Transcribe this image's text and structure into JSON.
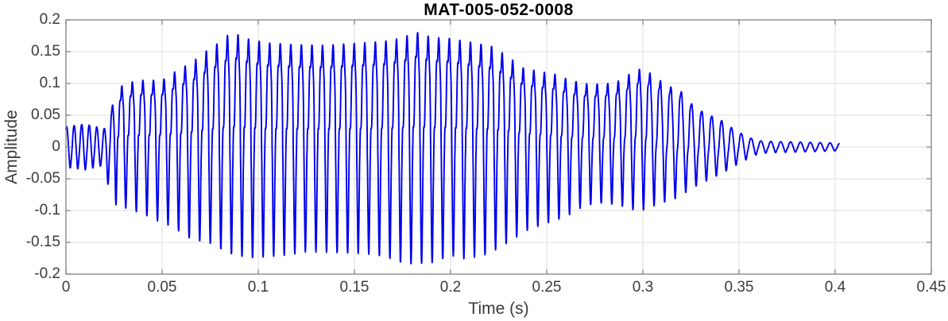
{
  "chart_data": {
    "type": "line",
    "subtype": "audio-waveform",
    "title": "MAT-005-052-0008",
    "xlabel": "Time (s)",
    "ylabel": "Amplitude",
    "xlim": [
      0,
      0.45
    ],
    "ylim": [
      -0.2,
      0.2
    ],
    "grid": true,
    "legend": "none",
    "xticks": [
      {
        "value": 0,
        "label": "0"
      },
      {
        "value": 0.05,
        "label": "0.05"
      },
      {
        "value": 0.1,
        "label": "0.1"
      },
      {
        "value": 0.15,
        "label": "0.15"
      },
      {
        "value": 0.2,
        "label": "0.2"
      },
      {
        "value": 0.25,
        "label": "0.25"
      },
      {
        "value": 0.3,
        "label": "0.3"
      },
      {
        "value": 0.35,
        "label": "0.35"
      },
      {
        "value": 0.4,
        "label": "0.4"
      },
      {
        "value": 0.45,
        "label": "0.45"
      }
    ],
    "yticks": [
      {
        "value": 0.2,
        "label": "0.2"
      },
      {
        "value": 0.15,
        "label": "0.15"
      },
      {
        "value": 0.1,
        "label": "0.1"
      },
      {
        "value": 0.05,
        "label": "0.05"
      },
      {
        "value": 0,
        "label": "0"
      },
      {
        "value": -0.05,
        "label": "-0.05"
      },
      {
        "value": -0.1,
        "label": "-0.1"
      },
      {
        "value": -0.15,
        "label": "-0.15"
      },
      {
        "value": -0.2,
        "label": "-0.2"
      }
    ],
    "colors": {
      "line": "#0000EE",
      "grid": "#DCDCDC",
      "box": "#8A8A8A",
      "tick": "#8A8A8A",
      "text": "#3B3B3B",
      "title": "#000000",
      "background": "#FFFFFF"
    },
    "signal": {
      "description": "Speech-like waveform: quiet ~0.03 onset 0-0.022s, loud voiced segment ~±0.17 peaking 0.18 from 0.03-0.22s, medium ~±0.10 segment 0.23-0.32s with bursts at 0.253s and 0.297s, decaying tail to ~±0.007 ending at 0.402s",
      "t_start": 0,
      "t_end": 0.402,
      "sample_step_s": 0.0001,
      "peak_amplitude": 0.182,
      "f0_keypoints": [
        [
          0,
          255
        ],
        [
          0.022,
          255
        ],
        [
          0.03,
          182
        ],
        [
          0.32,
          182
        ],
        [
          0.34,
          195
        ],
        [
          0.402,
          195
        ]
      ],
      "voiced_keypoints": [
        [
          0,
          0.12
        ],
        [
          0.022,
          0.15
        ],
        [
          0.027,
          1
        ],
        [
          0.23,
          1
        ],
        [
          0.3,
          0.9
        ],
        [
          0.325,
          0.5
        ],
        [
          0.345,
          0.25
        ],
        [
          0.402,
          0.15
        ]
      ],
      "harmonics": [
        [
          1,
          1.0,
          0
        ],
        [
          2,
          0.5,
          2.0
        ],
        [
          3,
          0.28,
          3.8
        ],
        [
          4,
          0.15,
          5.3
        ]
      ],
      "envelope_upper": [
        [
          0,
          0.032
        ],
        [
          0.01,
          0.036
        ],
        [
          0.018,
          0.03
        ],
        [
          0.022,
          0.028
        ],
        [
          0.025,
          0.08
        ],
        [
          0.03,
          0.1
        ],
        [
          0.04,
          0.105
        ],
        [
          0.05,
          0.105
        ],
        [
          0.06,
          0.125
        ],
        [
          0.065,
          0.131
        ],
        [
          0.07,
          0.145
        ],
        [
          0.075,
          0.155
        ],
        [
          0.08,
          0.165
        ],
        [
          0.086,
          0.181
        ],
        [
          0.095,
          0.17
        ],
        [
          0.105,
          0.164
        ],
        [
          0.12,
          0.161
        ],
        [
          0.135,
          0.16
        ],
        [
          0.15,
          0.163
        ],
        [
          0.165,
          0.166
        ],
        [
          0.175,
          0.172
        ],
        [
          0.182,
          0.181
        ],
        [
          0.19,
          0.173
        ],
        [
          0.2,
          0.171
        ],
        [
          0.212,
          0.164
        ],
        [
          0.222,
          0.158
        ],
        [
          0.23,
          0.142
        ],
        [
          0.238,
          0.124
        ],
        [
          0.248,
          0.118
        ],
        [
          0.255,
          0.114
        ],
        [
          0.262,
          0.105
        ],
        [
          0.272,
          0.099
        ],
        [
          0.282,
          0.1
        ],
        [
          0.29,
          0.106
        ],
        [
          0.296,
          0.124
        ],
        [
          0.303,
          0.118
        ],
        [
          0.312,
          0.098
        ],
        [
          0.32,
          0.087
        ],
        [
          0.327,
          0.062
        ],
        [
          0.334,
          0.051
        ],
        [
          0.342,
          0.04
        ],
        [
          0.348,
          0.026
        ],
        [
          0.356,
          0.014
        ],
        [
          0.362,
          0.009
        ],
        [
          0.375,
          0.008
        ],
        [
          0.39,
          0.007
        ],
        [
          0.402,
          0.006
        ]
      ],
      "envelope_lower": [
        [
          0,
          0.032
        ],
        [
          0.01,
          0.036
        ],
        [
          0.018,
          0.03
        ],
        [
          0.022,
          0.06
        ],
        [
          0.025,
          0.09
        ],
        [
          0.03,
          0.095
        ],
        [
          0.04,
          0.105
        ],
        [
          0.05,
          0.12
        ],
        [
          0.055,
          0.125
        ],
        [
          0.065,
          0.145
        ],
        [
          0.075,
          0.152
        ],
        [
          0.085,
          0.168
        ],
        [
          0.095,
          0.175
        ],
        [
          0.105,
          0.173
        ],
        [
          0.115,
          0.17
        ],
        [
          0.125,
          0.165
        ],
        [
          0.14,
          0.166
        ],
        [
          0.155,
          0.168
        ],
        [
          0.165,
          0.172
        ],
        [
          0.177,
          0.185
        ],
        [
          0.19,
          0.183
        ],
        [
          0.2,
          0.171
        ],
        [
          0.208,
          0.177
        ],
        [
          0.22,
          0.168
        ],
        [
          0.23,
          0.15
        ],
        [
          0.24,
          0.131
        ],
        [
          0.25,
          0.12
        ],
        [
          0.26,
          0.11
        ],
        [
          0.27,
          0.092
        ],
        [
          0.28,
          0.088
        ],
        [
          0.29,
          0.094
        ],
        [
          0.298,
          0.102
        ],
        [
          0.308,
          0.09
        ],
        [
          0.318,
          0.08
        ],
        [
          0.326,
          0.064
        ],
        [
          0.334,
          0.052
        ],
        [
          0.342,
          0.04
        ],
        [
          0.35,
          0.026
        ],
        [
          0.358,
          0.013
        ],
        [
          0.365,
          0.009
        ],
        [
          0.38,
          0.008
        ],
        [
          0.402,
          0.006
        ]
      ]
    }
  }
}
